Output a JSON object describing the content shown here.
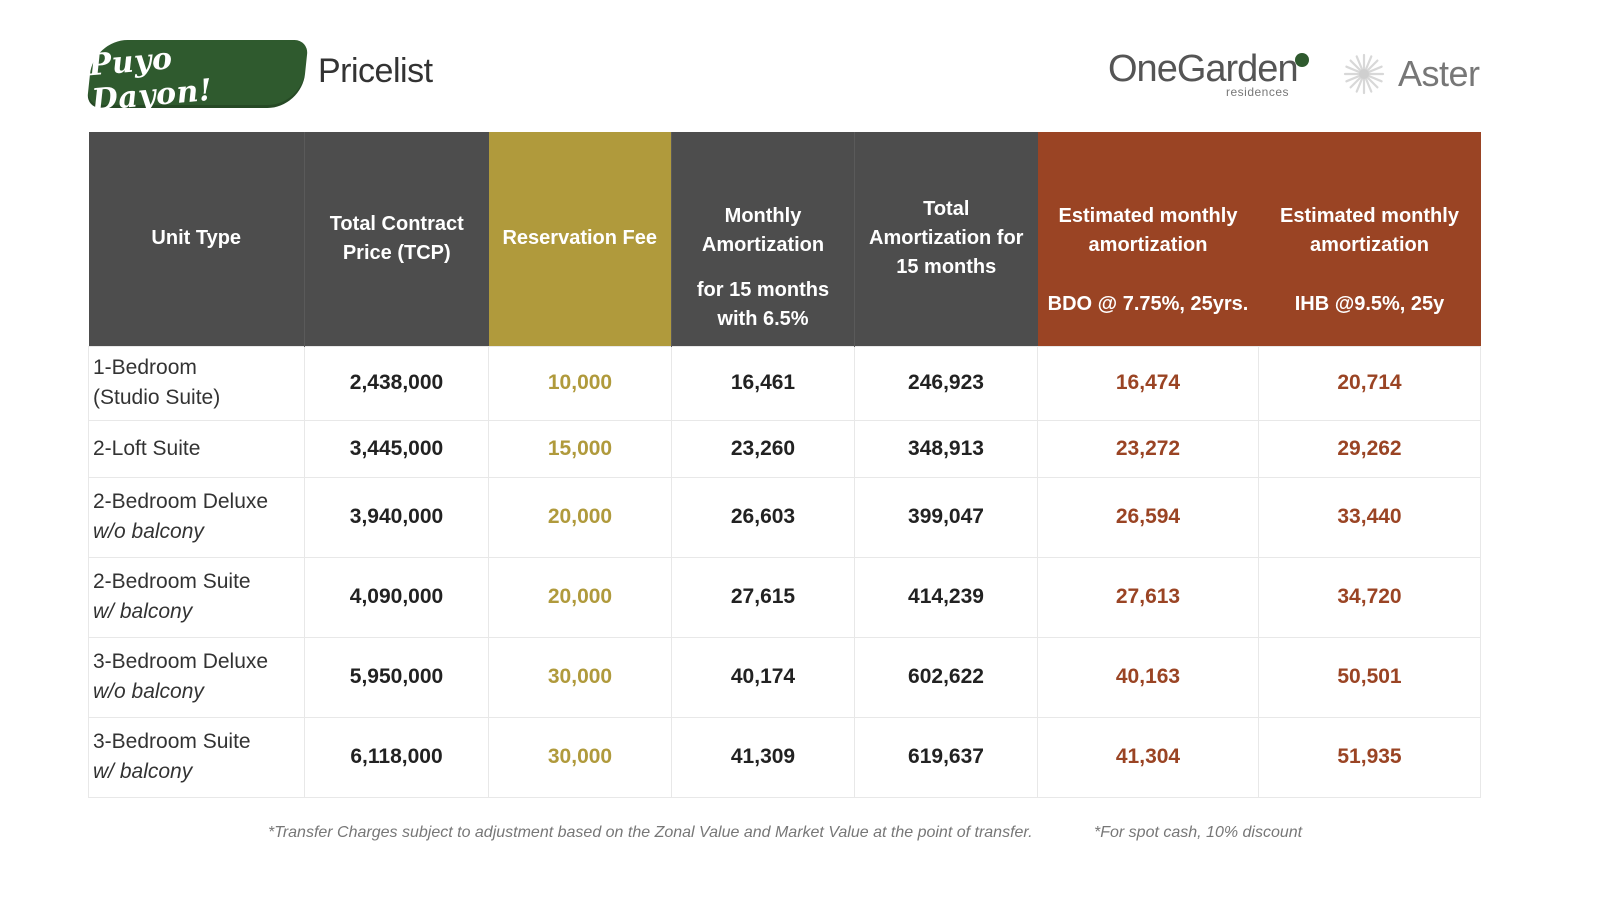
{
  "header": {
    "brand_text": "Puyo Dayon!",
    "title": "Pricelist",
    "logo_onegarden": "OneGarden",
    "logo_onegarden_sub": "residences",
    "logo_aster": "Aster"
  },
  "columns": {
    "unit_type": "Unit Type",
    "tcp": "Total Contract Price (TCP)",
    "reservation": "Reservation Fee",
    "monthly_top": "Monthly Amortization",
    "monthly_bottom": "for 15 months with 6.5%",
    "total_amort": "Total Amortization for 15 months",
    "est_bdo_top": "Estimated monthly amortization",
    "est_bdo_bottom": "BDO @ 7.75%, 25yrs.",
    "est_ihb_top": "Estimated monthly amortization",
    "est_ihb_bottom": "IHB @9.5%, 25y"
  },
  "rows": [
    {
      "unit_line1": "1-Bedroom",
      "unit_line2": "(Studio Suite)",
      "tcp": "2,438,000",
      "reservation": "10,000",
      "monthly": "16,461",
      "total": "246,923",
      "bdo": "16,474",
      "ihb": "20,714"
    },
    {
      "unit_line1": "2-Loft Suite",
      "unit_line2": "",
      "tcp": "3,445,000",
      "reservation": "15,000",
      "monthly": "23,260",
      "total": "348,913",
      "bdo": "23,272",
      "ihb": "29,262"
    },
    {
      "unit_line1": "2-Bedroom Deluxe",
      "unit_line2": "w/o balcony",
      "tcp": "3,940,000",
      "reservation": "20,000",
      "monthly": "26,603",
      "total": "399,047",
      "bdo": "26,594",
      "ihb": "33,440"
    },
    {
      "unit_line1": "2-Bedroom Suite",
      "unit_line2": "w/ balcony",
      "tcp": "4,090,000",
      "reservation": "20,000",
      "monthly": "27,615",
      "total": "414,239",
      "bdo": "27,613",
      "ihb": "34,720"
    },
    {
      "unit_line1": "3-Bedroom Deluxe",
      "unit_line2": "w/o balcony",
      "tcp": "5,950,000",
      "reservation": "30,000",
      "monthly": "40,174",
      "total": "602,622",
      "bdo": "40,163",
      "ihb": "50,501"
    },
    {
      "unit_line1": "3-Bedroom Suite",
      "unit_line2": "w/ balcony",
      "tcp": "6,118,000",
      "reservation": "30,000",
      "monthly": "41,309",
      "total": "619,637",
      "bdo": "41,304",
      "ihb": "51,935"
    }
  ],
  "footnotes": {
    "transfer": "*Transfer Charges subject to adjustment based on the Zonal Value and Market Value at the point of transfer.",
    "spot_cash": "*For spot cash, 10% discount"
  },
  "colors": {
    "header_gray": "#4d4d4d",
    "reservation_gold": "#b09a3c",
    "estimate_rust": "#9a4424",
    "brand_green": "#2f5a2e"
  }
}
